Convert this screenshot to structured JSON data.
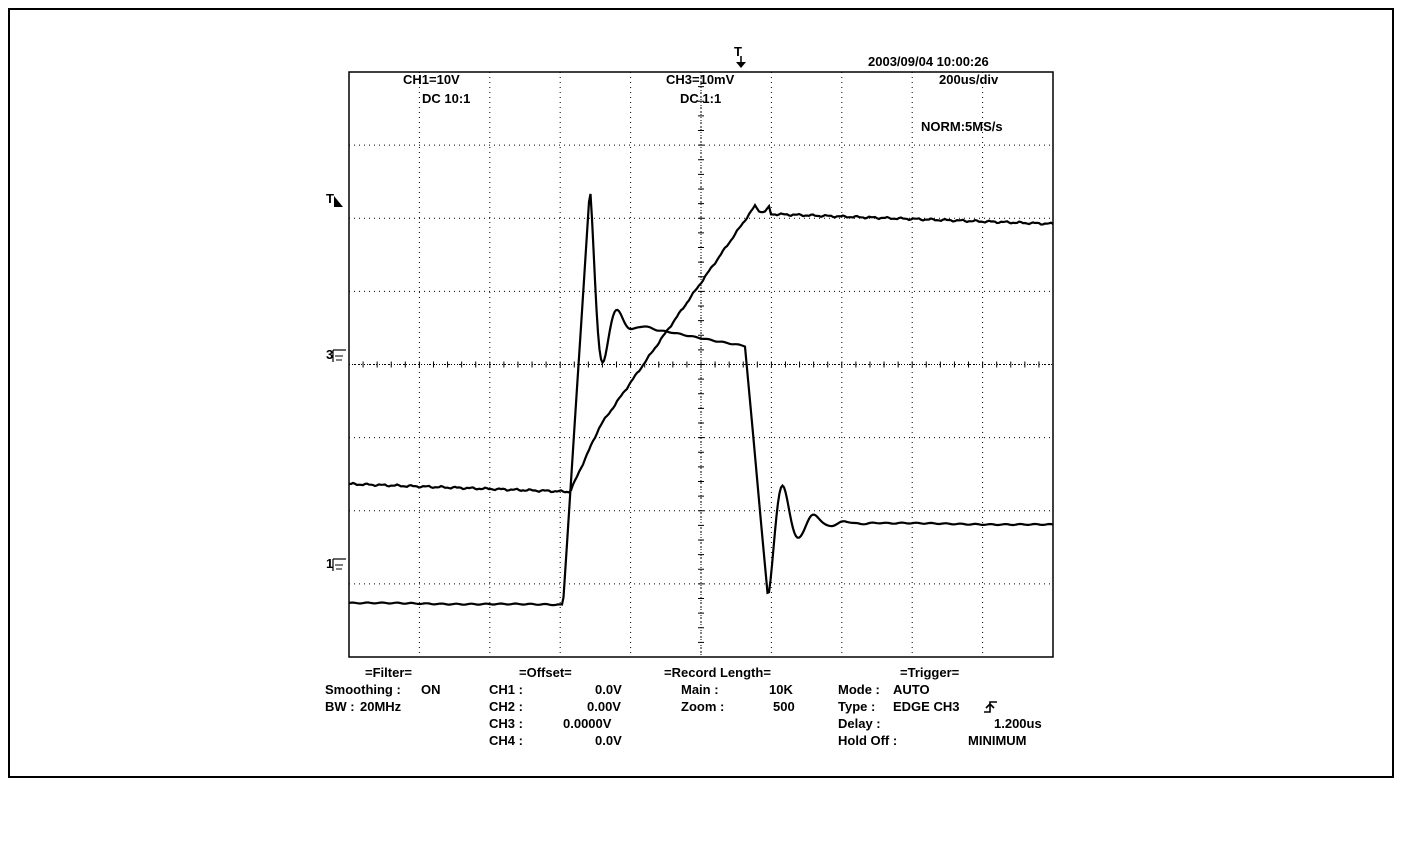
{
  "screen": {
    "timestamp": "2003/09/04  10:00:26",
    "timebase": "200us/div",
    "acquisition": "NORM:5MS/s",
    "ch1_scale": "CH1=10V",
    "ch1_coupling": "DC  10:1",
    "ch3_scale": "CH3=10mV",
    "ch3_coupling": "DC  1:1",
    "trigger_marker": "T",
    "trigger_level_marker": "T",
    "ch3_marker": "3",
    "ch1_marker": "1",
    "grid": true,
    "divisions": {
      "x": 10,
      "y": 8
    }
  },
  "waveforms": {
    "ch1_description": "step input",
    "ch3_description": "ringing"
  },
  "settings": {
    "filter": {
      "heading": "=Filter=",
      "smoothing_label": "Smoothing :",
      "smoothing_value": "ON",
      "bw_label": "BW :",
      "bw_value": "20MHz"
    },
    "offset": {
      "heading": "=Offset=",
      "rows": [
        {
          "label": "CH1 :",
          "value": "0.0V"
        },
        {
          "label": "CH2 :",
          "value": "0.00V"
        },
        {
          "label": "CH3 :",
          "value": "0.0000V"
        },
        {
          "label": "CH4 :",
          "value": "0.0V"
        }
      ]
    },
    "record_length": {
      "heading": "=Record Length=",
      "main_label": "Main :",
      "main_value": "10K",
      "zoom_label": "Zoom :",
      "zoom_value": "500"
    },
    "trigger": {
      "heading": "=Trigger=",
      "mode_label": "Mode :",
      "mode_value": "AUTO",
      "type_label": "Type :",
      "type_value": "EDGE CH3",
      "delay_label": "Delay :",
      "delay_value": "1.200us",
      "holdoff_label": "Hold Off :",
      "holdoff_value": "MINIMUM"
    }
  }
}
